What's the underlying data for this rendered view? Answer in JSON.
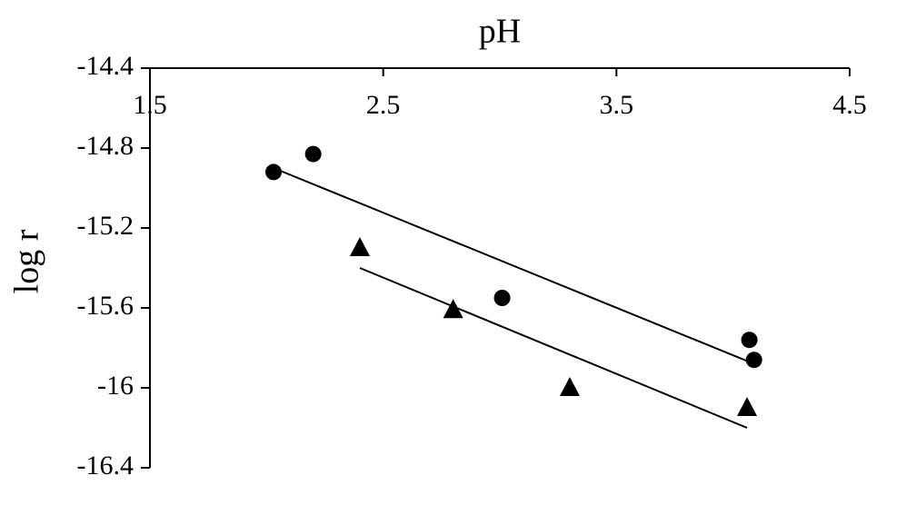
{
  "chart_data": {
    "type": "scatter",
    "x_label": "pH",
    "y_label": "log r",
    "xlim": [
      1.5,
      4.5
    ],
    "xticks": [
      1.5,
      2.5,
      3.5,
      4.5
    ],
    "ylim": [
      -16.4,
      -14.4
    ],
    "yticks": [
      -14.4,
      -14.8,
      -15.2,
      -15.6,
      -16,
      -16.4
    ],
    "x_axis_position": "top",
    "grid": false,
    "series": [
      {
        "marker": "circle",
        "color": "#000000",
        "x": [
          2.03,
          2.2,
          3.01,
          4.07,
          4.09
        ],
        "values": [
          -14.92,
          -14.83,
          -15.55,
          -15.76,
          -15.86
        ],
        "trendline": {
          "x": [
            2.03,
            4.07
          ],
          "values": [
            -14.9,
            -15.87
          ]
        }
      },
      {
        "marker": "triangle",
        "color": "#000000",
        "x": [
          2.4,
          2.8,
          3.3,
          4.06
        ],
        "values": [
          -15.3,
          -15.61,
          -16.0,
          -16.1
        ],
        "trendline": {
          "x": [
            2.4,
            4.06
          ],
          "values": [
            -15.4,
            -16.2
          ]
        }
      }
    ]
  }
}
